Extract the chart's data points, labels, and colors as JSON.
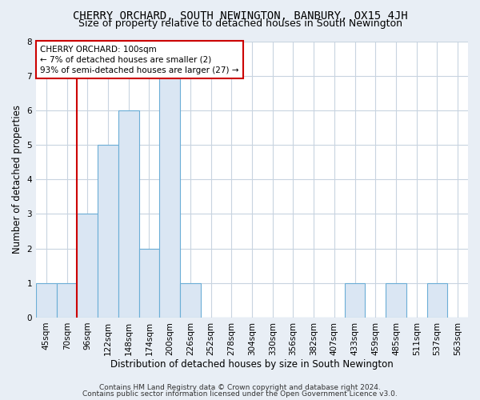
{
  "title": "CHERRY ORCHARD, SOUTH NEWINGTON, BANBURY, OX15 4JH",
  "subtitle": "Size of property relative to detached houses in South Newington",
  "xlabel": "Distribution of detached houses by size in South Newington",
  "ylabel": "Number of detached properties",
  "categories": [
    "45sqm",
    "70sqm",
    "96sqm",
    "122sqm",
    "148sqm",
    "174sqm",
    "200sqm",
    "226sqm",
    "252sqm",
    "278sqm",
    "304sqm",
    "330sqm",
    "356sqm",
    "382sqm",
    "407sqm",
    "433sqm",
    "459sqm",
    "485sqm",
    "511sqm",
    "537sqm",
    "563sqm"
  ],
  "values": [
    1,
    1,
    3,
    5,
    6,
    2,
    7,
    1,
    0,
    0,
    0,
    0,
    0,
    0,
    0,
    1,
    0,
    1,
    0,
    1,
    0
  ],
  "bar_color": "#dae6f3",
  "bar_edge_color": "#6baed6",
  "subject_line_color": "#cc0000",
  "annotation_line1": "CHERRY ORCHARD: 100sqm",
  "annotation_line2": "← 7% of detached houses are smaller (2)",
  "annotation_line3": "93% of semi-detached houses are larger (27) →",
  "annotation_box_color": "#cc0000",
  "annotation_box_fill": "white",
  "ylim": [
    0,
    8
  ],
  "yticks": [
    0,
    1,
    2,
    3,
    4,
    5,
    6,
    7,
    8
  ],
  "footer_line1": "Contains HM Land Registry data © Crown copyright and database right 2024.",
  "footer_line2": "Contains public sector information licensed under the Open Government Licence v3.0.",
  "background_color": "#e8eef5",
  "plot_background_color": "#ffffff",
  "grid_color": "#c8d4e0",
  "title_fontsize": 10,
  "subtitle_fontsize": 9,
  "label_fontsize": 8.5,
  "tick_fontsize": 7.5,
  "footer_fontsize": 6.5
}
